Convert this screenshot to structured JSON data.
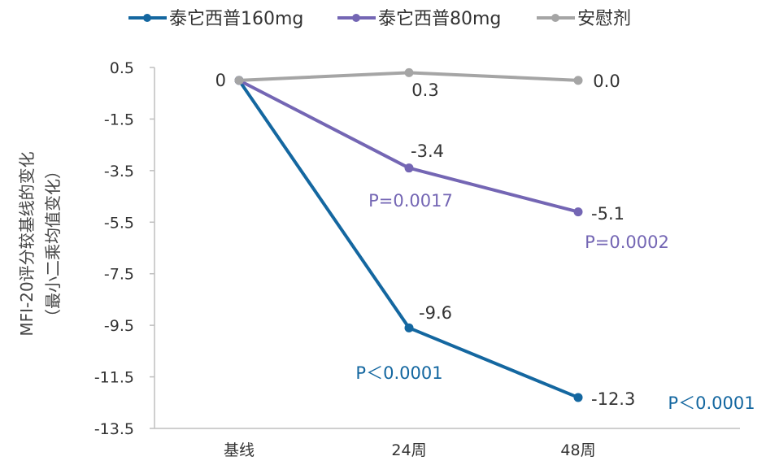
{
  "chart_data": {
    "type": "line",
    "categories": [
      "基线",
      "24周",
      "48周"
    ],
    "ylabel_lines": [
      "MFI-20评分较基线的变化",
      "（最小二乘均值变化）"
    ],
    "ylim": [
      -13.5,
      0.5
    ],
    "yticks": [
      "0.5",
      "-1.5",
      "-3.5",
      "-5.5",
      "-7.5",
      "-9.5",
      "-11.5",
      "-13.5"
    ],
    "legend_position": "top",
    "grid": false,
    "series": [
      {
        "name": "泰它西普160mg",
        "color": "#1467a0",
        "values": [
          0,
          -9.6,
          -12.3
        ],
        "labels": [
          "",
          "-9.6",
          "-12.3"
        ],
        "p_values": [
          "",
          "P＜0.0001",
          "P＜0.0001"
        ]
      },
      {
        "name": "泰它西普80mg",
        "color": "#7466b4",
        "values": [
          0,
          -3.4,
          -5.1
        ],
        "labels": [
          "",
          "-3.4",
          "-5.1"
        ],
        "p_values": [
          "",
          "P=0.0017",
          "P=0.0002"
        ]
      },
      {
        "name": "安慰剂",
        "color": "#a5a5a5",
        "values": [
          0,
          0.3,
          0.0
        ],
        "labels": [
          "0",
          "0.3",
          "0.0"
        ],
        "p_values": [
          "",
          "",
          ""
        ]
      }
    ]
  }
}
